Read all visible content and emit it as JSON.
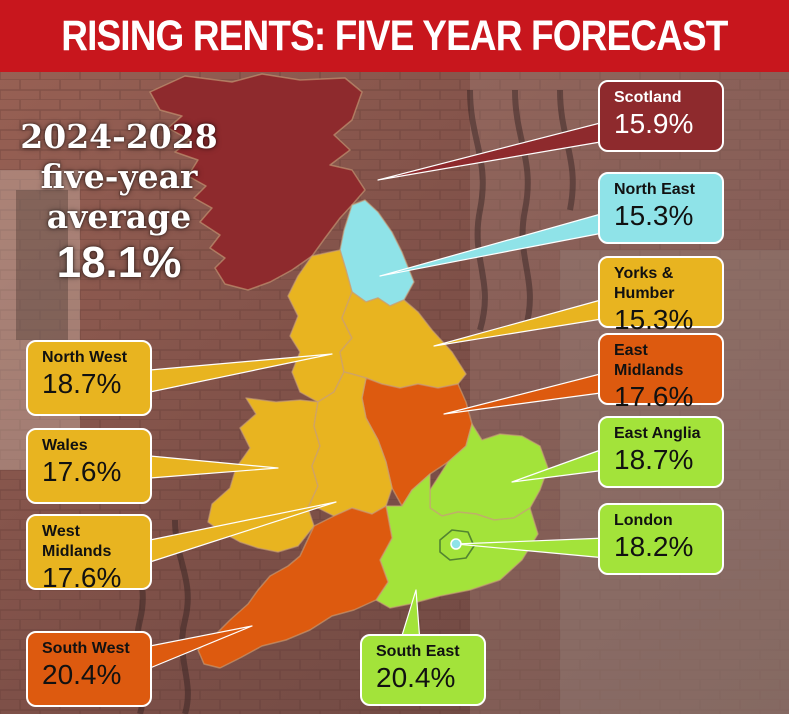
{
  "title": "RISING RENTS: FIVE YEAR FORECAST",
  "average": {
    "line1": "2024-2028",
    "line2": "five-year",
    "line3": "average",
    "value": "18.1%"
  },
  "colors": {
    "banner": "#c8161d",
    "scotland": "#8e2a2d",
    "north_east": "#8fe3e8",
    "mid_band": "#e8b420",
    "orange_band": "#dd5a0f",
    "lime_band": "#a3e33a"
  },
  "regions": [
    {
      "id": "scotland",
      "name": "Scotland",
      "value": "15.9%",
      "color": "#8e2a2d",
      "text_color": "#ffffff"
    },
    {
      "id": "north-east",
      "name": "North East",
      "value": "15.3%",
      "color": "#8fe3e8",
      "text_color": "#111111"
    },
    {
      "id": "yorks-humber",
      "name": "Yorks & Humber",
      "value": "15.3%",
      "color": "#e8b420",
      "text_color": "#111111"
    },
    {
      "id": "east-midlands",
      "name": "East Midlands",
      "value": "17.6%",
      "color": "#dd5a0f",
      "text_color": "#111111"
    },
    {
      "id": "east-anglia",
      "name": "East Anglia",
      "value": "18.7%",
      "color": "#a3e33a",
      "text_color": "#111111"
    },
    {
      "id": "london",
      "name": "London",
      "value": "18.2%",
      "color": "#a3e33a",
      "text_color": "#111111"
    },
    {
      "id": "north-west",
      "name": "North West",
      "value": "18.7%",
      "color": "#e8b420",
      "text_color": "#111111"
    },
    {
      "id": "wales",
      "name": "Wales",
      "value": "17.6%",
      "color": "#e8b420",
      "text_color": "#111111"
    },
    {
      "id": "west-midlands",
      "name": "West Midlands",
      "value": "17.6%",
      "color": "#e8b420",
      "text_color": "#111111"
    },
    {
      "id": "south-west",
      "name": "South West",
      "value": "20.4%",
      "color": "#dd5a0f",
      "text_color": "#111111"
    },
    {
      "id": "south-east",
      "name": "South East",
      "value": "20.4%",
      "color": "#a3e33a",
      "text_color": "#111111"
    }
  ]
}
